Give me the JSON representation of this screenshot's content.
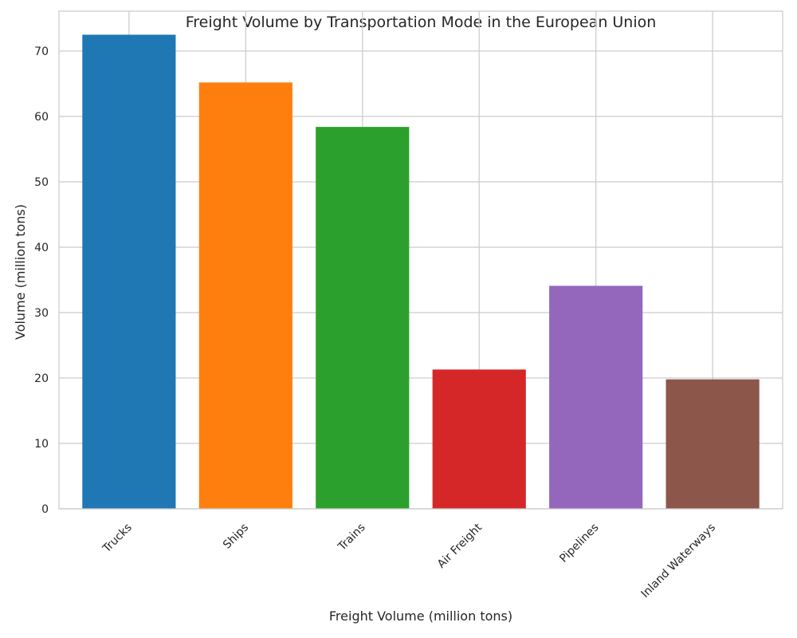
{
  "chart_data": {
    "type": "bar",
    "title": "Freight Volume by Transportation Mode in the European Union",
    "xlabel": "Freight Volume (million tons)",
    "ylabel": "Volume (million tons)",
    "categories": [
      "Trucks",
      "Ships",
      "Trains",
      "Air Freight",
      "Pipelines",
      "Inland Waterways"
    ],
    "values": [
      72.5,
      65.2,
      58.4,
      21.3,
      34.1,
      19.8
    ],
    "colors": [
      "#1f77b4",
      "#ff7f0e",
      "#2ca02c",
      "#d62728",
      "#9467bd",
      "#8c564b"
    ],
    "yticks": [
      0,
      10,
      20,
      30,
      40,
      50,
      60,
      70
    ],
    "ylim": [
      0,
      76.1
    ],
    "grid": true,
    "legend": "none"
  }
}
